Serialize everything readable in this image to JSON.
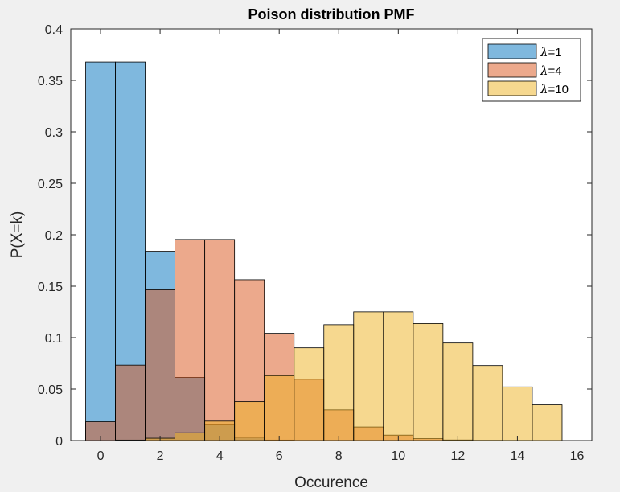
{
  "chart_data": {
    "type": "bar",
    "title": "Poison distribution PMF",
    "xlabel": "Occurence",
    "ylabel": "P(X=k)",
    "xlim": [
      -1,
      16.5
    ],
    "ylim": [
      0,
      0.4
    ],
    "xticks": [
      "0",
      "2",
      "4",
      "6",
      "8",
      "10",
      "12",
      "14",
      "16"
    ],
    "yticks": [
      "0",
      "0.05",
      "0.1",
      "0.15",
      "0.2",
      "0.25",
      "0.3",
      "0.35",
      "0.4"
    ],
    "legend_position": "top-right",
    "bin_width": 1,
    "series": [
      {
        "name": "λ=1",
        "lambda_symbol": "λ",
        "label_suffix": "=1",
        "color": "#0072BD",
        "alpha": 0.5,
        "x": [
          0,
          1,
          2,
          3,
          4,
          5,
          6,
          7,
          8,
          9,
          10,
          11,
          12,
          13,
          14,
          15
        ],
        "values": [
          0.3679,
          0.3679,
          0.1839,
          0.0613,
          0.0153,
          0.0031,
          0.0005,
          0.0001,
          0,
          0,
          0,
          0,
          0,
          0,
          0,
          0
        ]
      },
      {
        "name": "λ=4",
        "lambda_symbol": "λ",
        "label_suffix": "=4",
        "color": "#D95319",
        "alpha": 0.5,
        "x": [
          0,
          1,
          2,
          3,
          4,
          5,
          6,
          7,
          8,
          9,
          10,
          11,
          12,
          13,
          14,
          15
        ],
        "values": [
          0.0183,
          0.0733,
          0.1465,
          0.1954,
          0.1954,
          0.1563,
          0.1042,
          0.0595,
          0.0298,
          0.0132,
          0.0053,
          0.0019,
          0.0006,
          0.0002,
          0.0001,
          0
        ]
      },
      {
        "name": "λ=10",
        "lambda_symbol": "λ",
        "label_suffix": "=10",
        "color": "#EDB120",
        "alpha": 0.5,
        "x": [
          0,
          1,
          2,
          3,
          4,
          5,
          6,
          7,
          8,
          9,
          10,
          11,
          12,
          13,
          14,
          15
        ],
        "values": [
          0,
          0.0005,
          0.0023,
          0.0076,
          0.0189,
          0.0378,
          0.0631,
          0.0901,
          0.1126,
          0.1251,
          0.1251,
          0.1137,
          0.0948,
          0.0729,
          0.0521,
          0.0347
        ]
      }
    ]
  }
}
